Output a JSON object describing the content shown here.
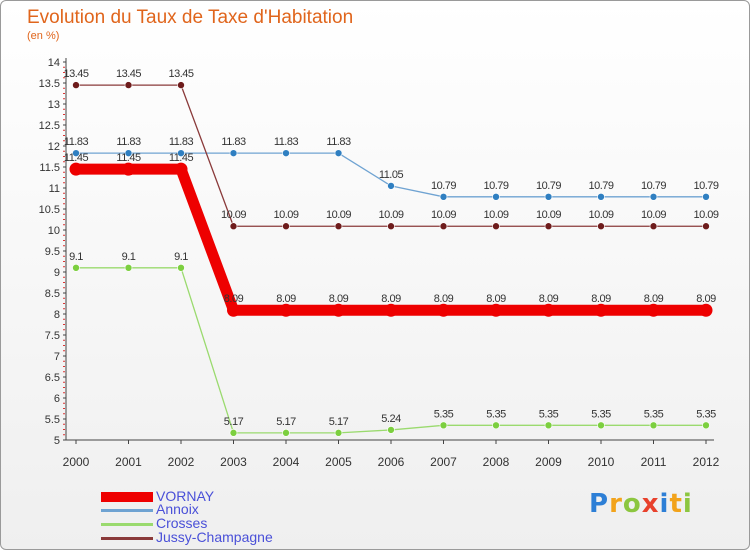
{
  "header": {
    "title": "Evolution du Taux de Taxe d'Habitation",
    "subtitle": "(en %)"
  },
  "brand": {
    "letters": [
      "P",
      "r",
      "o",
      "x",
      "i",
      "t",
      "i"
    ],
    "colors": [
      "#2d7fd6",
      "#f2a31b",
      "#8cc63f",
      "#e8412c",
      "#2d7fd6",
      "#f2a31b",
      "#8cc63f"
    ]
  },
  "chart_data": {
    "type": "line",
    "title": "Evolution du Taux de Taxe d'Habitation",
    "subtitle": "(en %)",
    "xlabel": "",
    "ylabel": "",
    "ylim": [
      5,
      14
    ],
    "yticks": [
      5,
      5.5,
      6,
      6.5,
      7,
      7.5,
      8,
      8.5,
      9,
      9.5,
      10,
      10.5,
      11,
      11.5,
      12,
      12.5,
      13,
      13.5,
      14
    ],
    "categories": [
      "2000",
      "2001",
      "2002",
      "2003",
      "2004",
      "2005",
      "2006",
      "2007",
      "2008",
      "2009",
      "2010",
      "2011",
      "2012"
    ],
    "grid": false,
    "legend": "bottom-left",
    "series": [
      {
        "name": "VORNAY",
        "color": "#ee0000",
        "width": "thick",
        "values": [
          11.45,
          11.45,
          11.45,
          8.09,
          8.09,
          8.09,
          8.09,
          8.09,
          8.09,
          8.09,
          8.09,
          8.09,
          8.09
        ],
        "labels": [
          "11.45",
          "11.45",
          "11.45",
          "8.09",
          "8.09",
          "8.09",
          "8.09",
          "8.09",
          "8.09",
          "8.09",
          "8.09",
          "8.09",
          "8.09"
        ]
      },
      {
        "name": "Annoix",
        "color": "#6fa3d2",
        "marker": "#2f7fc1",
        "width": "thin",
        "values": [
          11.83,
          11.83,
          11.83,
          11.83,
          11.83,
          11.83,
          11.05,
          10.79,
          10.79,
          10.79,
          10.79,
          10.79,
          10.79
        ],
        "labels": [
          "11.83",
          "11.83",
          "11.83",
          "11.83",
          "11.83",
          "11.83",
          "11.05",
          "10.79",
          "10.79",
          "10.79",
          "10.79",
          "10.79",
          "10.79"
        ]
      },
      {
        "name": "Crosses",
        "color": "#9ada6e",
        "marker": "#7ccf3f",
        "width": "thin",
        "values": [
          9.1,
          9.1,
          9.1,
          5.17,
          5.17,
          5.17,
          5.24,
          5.35,
          5.35,
          5.35,
          5.35,
          5.35,
          5.35
        ],
        "labels": [
          "9.1",
          "9.1",
          "9.1",
          "5.17",
          "5.17",
          "5.17",
          "5.24",
          "5.35",
          "5.35",
          "5.35",
          "5.35",
          "5.35",
          "5.35"
        ]
      },
      {
        "name": "Jussy-Champagne",
        "color": "#8a3a3a",
        "marker": "#6e1c1c",
        "width": "thin",
        "values": [
          13.45,
          13.45,
          13.45,
          10.09,
          10.09,
          10.09,
          10.09,
          10.09,
          10.09,
          10.09,
          10.09,
          10.09,
          10.09
        ],
        "labels": [
          "13.45",
          "13.45",
          "13.45",
          "10.09",
          "10.09",
          "10.09",
          "10.09",
          "10.09",
          "10.09",
          "10.09",
          "10.09",
          "10.09",
          "10.09"
        ]
      }
    ]
  }
}
